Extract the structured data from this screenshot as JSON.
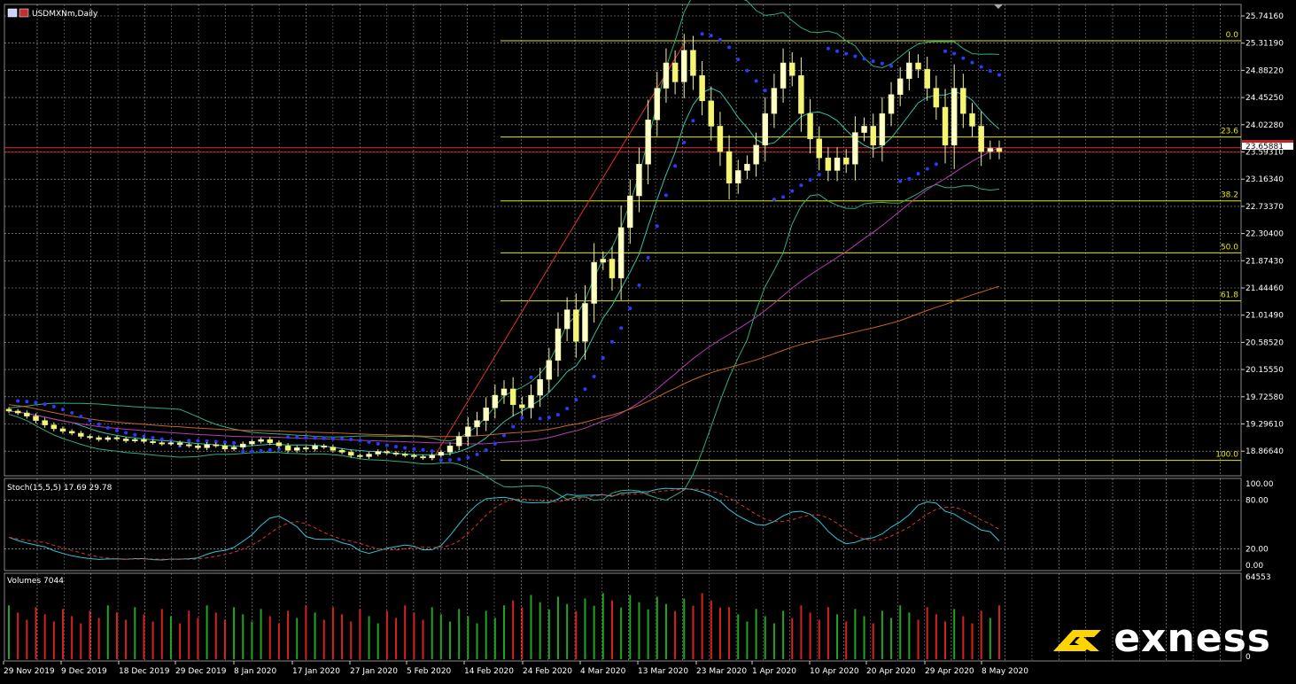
{
  "header": {
    "symbol_label": "USDMXNm,Daily"
  },
  "colors": {
    "background": "#000000",
    "grid": "#d8d8d8",
    "candle_up": "#ffffc8",
    "candle_down": "#f5f570",
    "fib": "#e6e600",
    "price_line": "#e03030",
    "trend_line": "#e03030",
    "psar": "#2a3bff",
    "bollinger": "#2fae7a",
    "ema_fast": "#31c4a8",
    "ma_purple": "#b43cb4",
    "ma_orange": "#c8641e",
    "stoch_main": "#31c4d8",
    "stoch_signal": "#e03030",
    "vol_up": "#1fa51f",
    "vol_down": "#d82020",
    "brand_mark": "#ffd400"
  },
  "price_axis": {
    "ticks": [
      "25.74160",
      "25.31190",
      "24.88220",
      "24.45250",
      "24.02280",
      "23.59310",
      "23.16340",
      "22.73370",
      "22.30400",
      "21.87430",
      "21.44460",
      "21.01490",
      "20.58520",
      "20.15550",
      "19.72580",
      "19.29610",
      "18.86640"
    ],
    "current_price": "23.65881",
    "range": [
      18.7,
      25.85
    ]
  },
  "date_axis": {
    "ticks": [
      "29 Nov 2019",
      "9 Dec 2019",
      "18 Dec 2019",
      "29 Dec 2019",
      "8 Jan 2020",
      "17 Jan 2020",
      "27 Jan 2020",
      "5 Feb 2020",
      "14 Feb 2020",
      "24 Feb 2020",
      "4 Mar 2020",
      "13 Mar 2020",
      "23 Mar 2020",
      "1 Apr 2020",
      "10 Apr 2020",
      "20 Apr 2020",
      "29 Apr 2020",
      "8 May 2020"
    ]
  },
  "fibonacci": {
    "levels": [
      {
        "label": "0.0",
        "price": 25.35
      },
      {
        "label": "23.6",
        "price": 23.83
      },
      {
        "label": "38.2",
        "price": 22.82
      },
      {
        "label": "50.0",
        "price": 22.0
      },
      {
        "label": "61.8",
        "price": 21.24
      },
      {
        "label": "100.0",
        "price": 18.72
      }
    ]
  },
  "stochastic": {
    "label": "Stoch(15,5,5) 17.69 29.78",
    "axis_ticks": [
      "100.00",
      "80.00",
      "20.00",
      "0.00"
    ],
    "axis_values": [
      100,
      80,
      20,
      0
    ]
  },
  "volumes": {
    "label": "Volumes 7044",
    "axis_ticks": [
      "64553",
      "0"
    ]
  },
  "brand": {
    "name": "exness"
  },
  "chart_data": {
    "type": "candlestick",
    "symbol": "USDMXNm",
    "timeframe": "Daily",
    "price_range": [
      18.7,
      25.85
    ],
    "closes": [
      19.5,
      19.47,
      19.42,
      19.35,
      19.28,
      19.22,
      19.18,
      19.15,
      19.1,
      19.08,
      19.05,
      19.08,
      19.06,
      19.03,
      19.05,
      19.02,
      19.0,
      18.98,
      19.0,
      18.97,
      18.95,
      18.92,
      18.97,
      18.95,
      18.9,
      18.93,
      18.98,
      19.02,
      19.05,
      19.0,
      18.95,
      18.88,
      18.92,
      18.9,
      18.95,
      18.93,
      18.88,
      18.85,
      18.8,
      18.78,
      18.82,
      18.86,
      18.84,
      18.82,
      18.8,
      18.78,
      18.76,
      18.8,
      18.85,
      18.95,
      19.1,
      19.25,
      19.35,
      19.55,
      19.75,
      19.85,
      19.6,
      19.55,
      19.75,
      20.0,
      20.3,
      20.8,
      21.1,
      20.6,
      21.2,
      21.85,
      21.9,
      21.6,
      22.4,
      22.9,
      23.4,
      24.1,
      24.6,
      25.0,
      24.7,
      25.2,
      24.8,
      24.4,
      24.0,
      23.6,
      23.1,
      23.3,
      23.4,
      23.7,
      24.2,
      24.6,
      25.0,
      24.8,
      24.2,
      23.8,
      23.5,
      23.3,
      23.5,
      23.4,
      23.9,
      24.0,
      23.7,
      24.2,
      24.5,
      24.75,
      25.0,
      24.9,
      24.6,
      24.3,
      23.7,
      24.6,
      24.2,
      24.0,
      23.6,
      23.65,
      23.6
    ]
  }
}
